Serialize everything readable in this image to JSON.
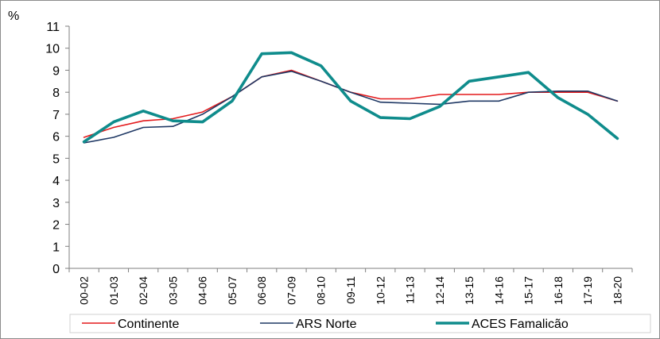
{
  "chart_data": {
    "type": "line",
    "title": "",
    "xlabel": "",
    "ylabel": "%",
    "ylim": [
      0,
      11
    ],
    "yticks": [
      0,
      1,
      2,
      3,
      4,
      5,
      6,
      7,
      8,
      9,
      10,
      11
    ],
    "grid": false,
    "legend_position": "bottom",
    "categories": [
      "00-02",
      "01-03",
      "02-04",
      "03-05",
      "04-06",
      "05-07",
      "06-08",
      "07-09",
      "08-10",
      "09-11",
      "10-12",
      "11-13",
      "12-14",
      "13-15",
      "14-16",
      "15-17",
      "16-18",
      "17-19",
      "18-20"
    ],
    "series": [
      {
        "name": "Continente",
        "color": "#e31a1c",
        "values": [
          5.95,
          6.4,
          6.7,
          6.8,
          7.1,
          7.8,
          8.7,
          9.0,
          8.5,
          8.0,
          7.7,
          7.7,
          7.9,
          7.9,
          7.9,
          8.0,
          8.0,
          8.0,
          7.6
        ]
      },
      {
        "name": "ARS Norte",
        "color": "#1f3864",
        "values": [
          5.7,
          5.95,
          6.4,
          6.45,
          7.0,
          7.8,
          8.7,
          8.95,
          8.5,
          8.0,
          7.55,
          7.5,
          7.45,
          7.6,
          7.6,
          8.0,
          8.05,
          8.05,
          7.6
        ]
      },
      {
        "name": "ACES Famalicão",
        "color": "#0f8c8c",
        "values": [
          5.75,
          6.65,
          7.15,
          6.7,
          6.65,
          7.6,
          9.75,
          9.8,
          9.2,
          7.6,
          6.85,
          6.8,
          7.35,
          8.5,
          8.7,
          8.9,
          7.75,
          7.0,
          5.9
        ]
      }
    ]
  }
}
